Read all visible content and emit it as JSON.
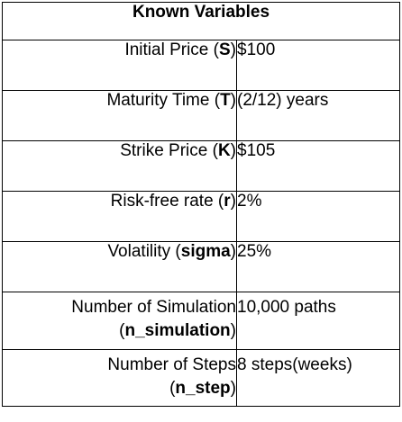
{
  "table": {
    "title": "Known Variables",
    "rows": [
      {
        "label": "Initial Price (",
        "symbol": "S",
        "close": ")",
        "value": "$100"
      },
      {
        "label": "Maturity Time (",
        "symbol": "T",
        "close": ")",
        "value": "(2/12) years"
      },
      {
        "label": "Strike Price (",
        "symbol": "K",
        "close": ")",
        "value": "$105"
      },
      {
        "label": "Risk-free rate (",
        "symbol": "r",
        "close": ")",
        "value": "2%"
      },
      {
        "label": "Volatility (",
        "symbol": "sigma",
        "close": ")",
        "value": "25%"
      },
      {
        "label": "Number of Simulation",
        "open2": "(",
        "symbol": "n_simulation",
        "close": ")",
        "value": "10,000 paths"
      },
      {
        "label": "Number of Steps",
        "open2": "(",
        "symbol": "n_step",
        "close": ")",
        "value": "8 steps(weeks)"
      }
    ]
  }
}
